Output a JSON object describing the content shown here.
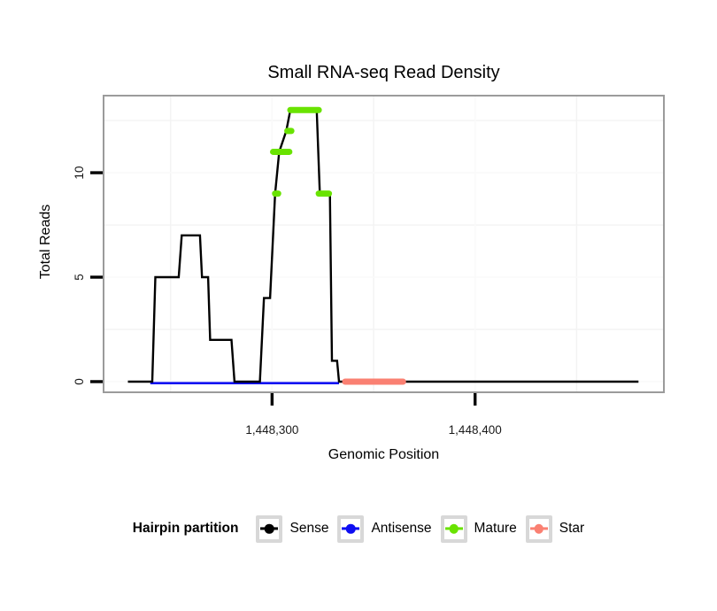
{
  "chart_data": {
    "type": "line",
    "title": "Small RNA-seq Read Density",
    "xlabel": "Genomic Position",
    "ylabel": "Total Reads",
    "xlim": [
      1448217,
      1448493
    ],
    "ylim": [
      -0.51,
      13.69
    ],
    "grid": "minor-only, very light gray on white panel, gray panel border",
    "x_ticks": [
      {
        "pos": 1448300,
        "label": "1,448,300"
      },
      {
        "pos": 1448400,
        "label": "1,448,400"
      }
    ],
    "x_minor": [
      1448250,
      1448350,
      1448450
    ],
    "y_ticks": [
      {
        "val": 0,
        "label": "0"
      },
      {
        "val": 5,
        "label": "5"
      },
      {
        "val": 10,
        "label": "10"
      }
    ],
    "y_minor": [
      2.5,
      7.5,
      12.5
    ],
    "series": [
      {
        "name": "Sense",
        "type": "step",
        "color": "#000000",
        "width": 2.4,
        "points": [
          [
            1448229,
            0
          ],
          [
            1448241,
            0
          ],
          [
            1448242.5,
            5
          ],
          [
            1448254,
            5
          ],
          [
            1448255.5,
            7
          ],
          [
            1448264.5,
            7
          ],
          [
            1448265.5,
            5
          ],
          [
            1448268.5,
            5
          ],
          [
            1448269.5,
            2
          ],
          [
            1448280,
            2
          ],
          [
            1448281.5,
            0
          ],
          [
            1448294,
            0
          ],
          [
            1448296,
            4
          ],
          [
            1448299,
            4
          ],
          [
            1448301.5,
            9
          ],
          [
            1448303.5,
            11
          ],
          [
            1448307,
            12
          ],
          [
            1448309,
            13
          ],
          [
            1448322,
            13
          ],
          [
            1448323.5,
            9
          ],
          [
            1448328.5,
            9
          ],
          [
            1448329.5,
            1
          ],
          [
            1448332,
            1
          ],
          [
            1448333,
            0
          ],
          [
            1448480.5,
            0
          ]
        ]
      },
      {
        "name": "Antisense",
        "type": "step",
        "color": "#0D0DF2",
        "width": 2.6,
        "points": [
          [
            1448240,
            0
          ],
          [
            1448333,
            0
          ]
        ]
      },
      {
        "name": "Mature",
        "type": "segments",
        "color": "#69E300",
        "width": 7,
        "segments": [
          [
            1448309,
            1448323,
            13
          ],
          [
            1448307.5,
            1448309.5,
            12
          ],
          [
            1448300.5,
            1448308.5,
            11
          ],
          [
            1448301.5,
            1448303,
            9
          ],
          [
            1448323,
            1448328,
            9
          ]
        ]
      },
      {
        "name": "Star",
        "type": "segments",
        "color": "#FA8072",
        "width": 7,
        "segments": [
          [
            1448336,
            1448364.5,
            0
          ]
        ]
      }
    ],
    "legend_position": "bottom"
  },
  "legend": {
    "title": "Hairpin partition",
    "items": [
      {
        "label": "Sense",
        "color": "#000000"
      },
      {
        "label": "Antisense",
        "color": "#0D0DF2"
      },
      {
        "label": "Mature",
        "color": "#69E300"
      },
      {
        "label": "Star",
        "color": "#FA8072"
      }
    ]
  },
  "colors": {
    "panel_border": "#9B9B9B",
    "minor_gridline": "#F3F3F3",
    "major_gridline": "#FAFAFA",
    "tick": "#000000",
    "legend_key_border": "#D8D8D8"
  }
}
